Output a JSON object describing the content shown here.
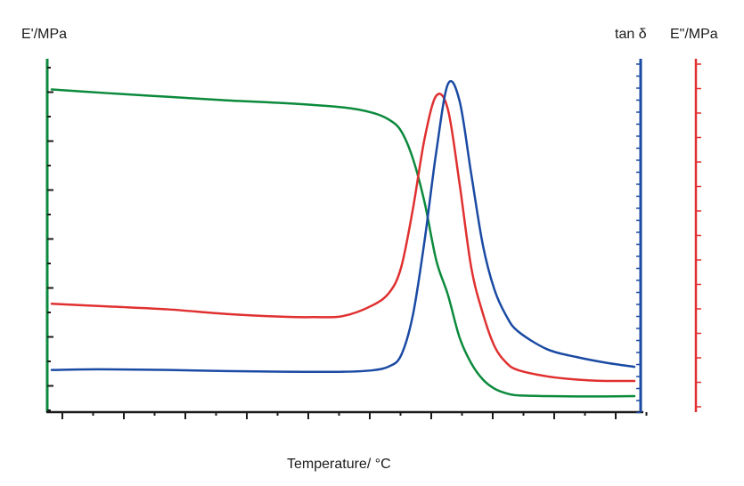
{
  "chart_data": {
    "type": "line",
    "title": "",
    "xlabel": "Temperature/ °C",
    "ylabels": {
      "left": "E'/MPa",
      "right_inner": "tan δ",
      "right_outer": "E\"/MPa"
    },
    "x_domain": [
      0,
      100
    ],
    "y_domain": [
      0,
      100
    ],
    "grid": false,
    "legend": "none",
    "tick_labels": "none",
    "colors": {
      "storage_modulus": "#0b8a3c",
      "tan_delta": "#1a4aa3",
      "loss_modulus": "#e03030",
      "axis_text": "#1a1a1a"
    },
    "series": [
      {
        "key": "storage_modulus",
        "axis": "left",
        "x": [
          0,
          10,
          20,
          30,
          40,
          50,
          55,
          58,
          60,
          62,
          64,
          66,
          68,
          70,
          72,
          74,
          76,
          78,
          80,
          85,
          90,
          95,
          100
        ],
        "values": [
          91.3,
          90.2,
          89.2,
          88.2,
          87.4,
          86.2,
          84.7,
          82.6,
          79.4,
          71.6,
          59.2,
          42.8,
          33.0,
          20.9,
          13.6,
          9.0,
          6.4,
          5.1,
          4.5,
          4.3,
          4.2,
          4.2,
          4.3
        ]
      },
      {
        "key": "loss_modulus",
        "axis": "right_outer",
        "x": [
          0,
          10,
          20,
          30,
          40,
          45,
          50,
          55,
          58,
          60,
          62,
          64,
          66,
          68,
          70,
          72,
          74,
          76,
          78,
          80,
          85,
          90,
          95,
          100
        ],
        "values": [
          30.5,
          29.7,
          28.9,
          27.6,
          26.8,
          26.7,
          27.0,
          30.0,
          33.8,
          41.0,
          57.5,
          77.4,
          89.5,
          85.6,
          64.5,
          40.8,
          27.7,
          18.4,
          13.8,
          11.7,
          9.9,
          9.0,
          8.6,
          8.6
        ]
      },
      {
        "key": "tan_delta",
        "axis": "right_inner",
        "x": [
          0,
          8,
          20,
          30,
          40,
          50,
          55,
          58,
          60,
          62,
          64,
          66,
          68,
          70,
          72,
          74,
          76,
          78,
          80,
          85,
          90,
          95,
          100
        ],
        "values": [
          11.7,
          11.9,
          11.7,
          11.4,
          11.2,
          11.2,
          11.6,
          12.8,
          16.0,
          27.4,
          48.5,
          73.6,
          92.8,
          88.0,
          67.3,
          47.1,
          34.4,
          27.1,
          22.7,
          17.6,
          15.4,
          13.8,
          12.6
        ]
      }
    ]
  }
}
